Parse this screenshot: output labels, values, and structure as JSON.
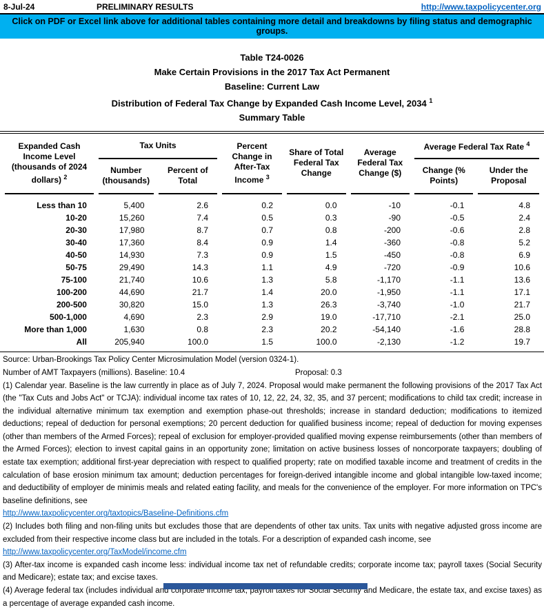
{
  "colors": {
    "banner_bg": "#00B0F0",
    "link_blue": "#0563C1",
    "bottom_bar": "#2B579A"
  },
  "topbar": {
    "date": "8-Jul-24",
    "preliminary": "PRELIMINARY RESULTS",
    "url": "http://www.taxpolicycenter.org"
  },
  "banner": {
    "text": "Click on PDF or Excel link above for additional tables containing more detail and breakdowns by filing status and demographic groups."
  },
  "title": {
    "line1": "Table T24-0026",
    "line2": "Make Certain Provisions in the 2017 Tax Act Permanent",
    "line3": "Baseline: Current Law",
    "line4": "Distribution of Federal Tax Change by Expanded Cash Income Level, 2034",
    "line4_sup": "1",
    "line5": "Summary Table"
  },
  "table": {
    "headers": {
      "col1": "Expanded Cash Income Level (thousands of 2024 dollars)",
      "col1_sup": "2",
      "tax_units_group": "Tax Units",
      "number": "Number (thousands)",
      "percent_of_total": "Percent of Total",
      "pct_change_ati": "Percent Change in After-Tax Income",
      "pct_change_ati_sup": "3",
      "share_of_change": "Share of Total Federal Tax Change",
      "avg_change": "Average Federal Tax Change ($)",
      "avg_rate_group": "Average Federal Tax Rate",
      "avg_rate_group_sup": "4",
      "rate_change": "Change (% Points)",
      "rate_under": "Under the Proposal"
    },
    "rows": [
      {
        "level": "Less than 10",
        "values": [
          "5,400",
          "2.6",
          "0.2",
          "0.0",
          "-10",
          "-0.1",
          "4.8"
        ]
      },
      {
        "level": "10-20",
        "values": [
          "15,260",
          "7.4",
          "0.5",
          "0.3",
          "-90",
          "-0.5",
          "2.4"
        ]
      },
      {
        "level": "20-30",
        "values": [
          "17,980",
          "8.7",
          "0.7",
          "0.8",
          "-200",
          "-0.6",
          "2.8"
        ]
      },
      {
        "level": "30-40",
        "values": [
          "17,360",
          "8.4",
          "0.9",
          "1.4",
          "-360",
          "-0.8",
          "5.2"
        ]
      },
      {
        "level": "40-50",
        "values": [
          "14,930",
          "7.3",
          "0.9",
          "1.5",
          "-450",
          "-0.8",
          "6.9"
        ]
      },
      {
        "level": "50-75",
        "values": [
          "29,490",
          "14.3",
          "1.1",
          "4.9",
          "-720",
          "-0.9",
          "10.6"
        ]
      },
      {
        "level": "75-100",
        "values": [
          "21,740",
          "10.6",
          "1.3",
          "5.8",
          "-1,170",
          "-1.1",
          "13.6"
        ]
      },
      {
        "level": "100-200",
        "values": [
          "44,690",
          "21.7",
          "1.4",
          "20.0",
          "-1,950",
          "-1.1",
          "17.1"
        ]
      },
      {
        "level": "200-500",
        "values": [
          "30,820",
          "15.0",
          "1.3",
          "26.3",
          "-3,740",
          "-1.0",
          "21.7"
        ]
      },
      {
        "level": "500-1,000",
        "values": [
          "4,690",
          "2.3",
          "2.9",
          "19.0",
          "-17,710",
          "-2.1",
          "25.0"
        ]
      },
      {
        "level": "More than 1,000",
        "values": [
          "1,630",
          "0.8",
          "2.3",
          "20.2",
          "-54,140",
          "-1.6",
          "28.8"
        ]
      },
      {
        "level": "All",
        "values": [
          "205,940",
          "100.0",
          "1.5",
          "100.0",
          "-2,130",
          "-1.2",
          "19.7"
        ]
      }
    ]
  },
  "notes": {
    "source": "Source: Urban-Brookings Tax Policy Center Microsimulation Model (version 0324-1).",
    "amt_label": "Number of AMT Taxpayers (millions).  Baseline: 10.4",
    "amt_proposal": "Proposal: 0.3",
    "footnote1": "(1) Calendar year. Baseline is the law currently in place as of July 7, 2024. Proposal would make permanent the following provisions of the 2017 Tax Act (the \"Tax Cuts and Jobs Act\" or TCJA): individual income tax rates of 10, 12, 22, 24, 32, 35, and 37 percent; modifications to child tax credit; increase in the individual alternative minimum tax exemption and exemption phase-out thresholds; increase in standard deduction; modifications to itemized deductions; repeal of deduction for personal exemptions; 20 percent deduction for qualified business income; repeal of deduction for moving expenses (other than members of the Armed Forces); repeal of exclusion for employer-provided qualified moving expense reimbursements (other than members of the Armed Forces); election to invest capital gains in an opportunity zone; limitation on active business losses of noncorporate taxpayers; doubling of estate tax exemption; additional first-year depreciation with respect to qualified property; rate on modified taxable income and treatment of credits in the calculation of base erosion minimum tax amount; deduction percentages for foreign-derived intangible income and global intangible low-taxed income; and deductibility of employer de minimis meals and related eating facility, and meals for the convenience of the employer. For more information on TPC's baseline definitions, see",
    "footnote1_link": "http://www.taxpolicycenter.org/taxtopics/Baseline-Definitions.cfm",
    "footnote2": "(2) Includes both filing and non-filing units but excludes those that are dependents of other tax units. Tax units with negative adjusted gross income are excluded from their respective income class but are included in the totals. For a description of expanded cash income, see",
    "footnote2_link": "http://www.taxpolicycenter.org/TaxModel/income.cfm",
    "footnote3": "(3) After-tax income is expanded cash income less: individual income tax net of refundable credits; corporate income tax; payroll taxes (Social Security and Medicare); estate tax; and excise taxes.",
    "footnote4": "(4) Average federal tax (includes individual and corporate income tax, payroll taxes for Social Security and Medicare, the estate tax, and excise taxes) as a percentage of average expanded cash income."
  }
}
